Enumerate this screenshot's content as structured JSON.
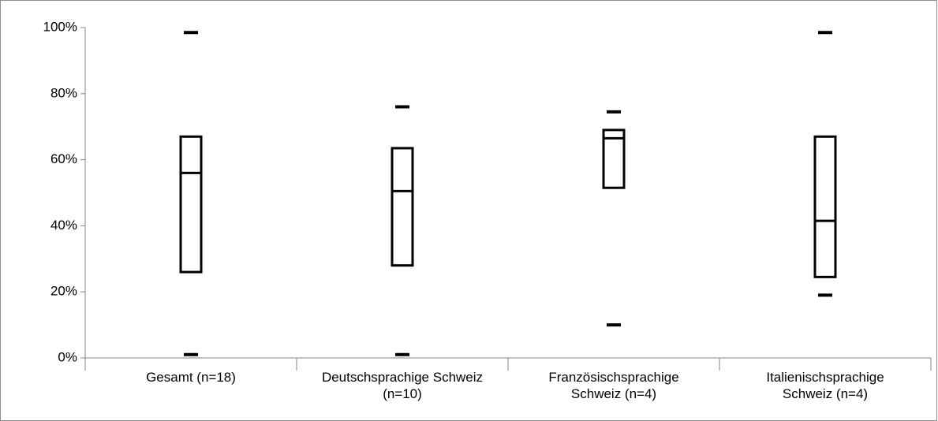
{
  "chart_data": {
    "type": "box",
    "categories": [
      "Gesamt (n=18)",
      "Deutschsprachige Schweiz (n=10)",
      "Französischsprachige Schweiz (n=4)",
      "Italienischsprachige Schweiz (n=4)"
    ],
    "boxes": [
      {
        "min": 1,
        "q1": 26,
        "median": 56,
        "q3": 67,
        "max": 98.5
      },
      {
        "min": 1,
        "q1": 28,
        "median": 50.5,
        "q3": 63.5,
        "max": 76
      },
      {
        "min": 10,
        "q1": 51.5,
        "median": 66.5,
        "q3": 69,
        "max": 74.5
      },
      {
        "min": 19,
        "q1": 24.5,
        "median": 41.5,
        "q3": 67,
        "max": 98.5
      }
    ],
    "color": "#000000",
    "ylim": [
      0,
      100
    ],
    "yticks": [
      {
        "value": 0,
        "label": "0%"
      },
      {
        "value": 20,
        "label": "20%"
      },
      {
        "value": 40,
        "label": "40%"
      },
      {
        "value": 60,
        "label": "60%"
      },
      {
        "value": 80,
        "label": "80%"
      },
      {
        "value": 100,
        "label": "100%"
      }
    ]
  }
}
